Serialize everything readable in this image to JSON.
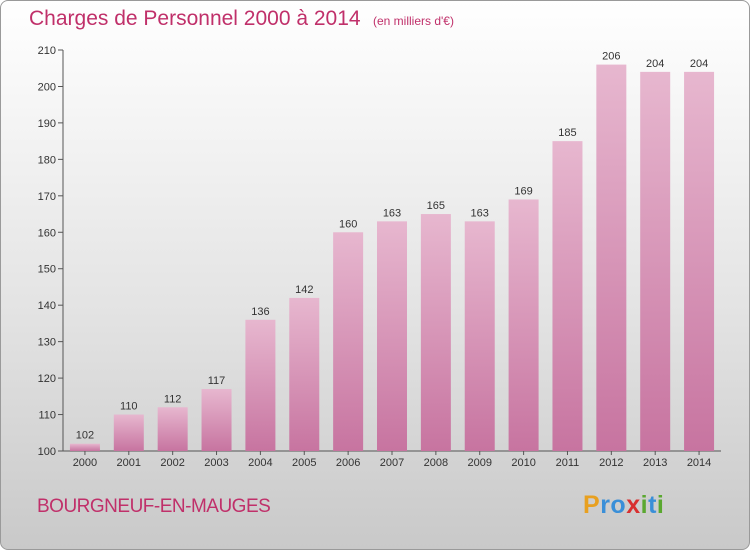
{
  "header": {
    "title": "Charges de Personnel 2000 à 2014",
    "subtitle": "(en milliers d'€)"
  },
  "footer": {
    "commune": "BOURGNEUF-EN-MAUGES",
    "logo_letters": [
      "P",
      "r",
      "o",
      "x",
      "i",
      "t",
      "i"
    ],
    "logo_colors": [
      "#e8a020",
      "#3a8fd8",
      "#3a8fd8",
      "#d83030",
      "#5aa830",
      "#3a8fd8",
      "#5aa830"
    ]
  },
  "colors": {
    "bar": "#c774a0",
    "bar_light": "#e7b7cf",
    "accent": "#c0306a"
  },
  "chart_data": {
    "type": "bar",
    "title": "Charges de Personnel 2000 à 2014",
    "subtitle": "(en milliers d'€)",
    "categories": [
      "2000",
      "2001",
      "2002",
      "2003",
      "2004",
      "2005",
      "2006",
      "2007",
      "2008",
      "2009",
      "2010",
      "2011",
      "2012",
      "2013",
      "2014"
    ],
    "values": [
      102,
      110,
      112,
      117,
      136,
      142,
      160,
      163,
      165,
      163,
      169,
      185,
      206,
      204,
      204
    ],
    "data_labels": [
      "102",
      "110",
      "112",
      "117",
      "136",
      "142",
      "160",
      "163",
      "165",
      "163",
      "169",
      "185",
      "206",
      "204",
      "204"
    ],
    "yticks": [
      "100",
      "110",
      "120",
      "130",
      "140",
      "150",
      "160",
      "170",
      "180",
      "190",
      "200",
      "210"
    ],
    "ylim": [
      100,
      210
    ],
    "grid": false,
    "legend": "none"
  }
}
